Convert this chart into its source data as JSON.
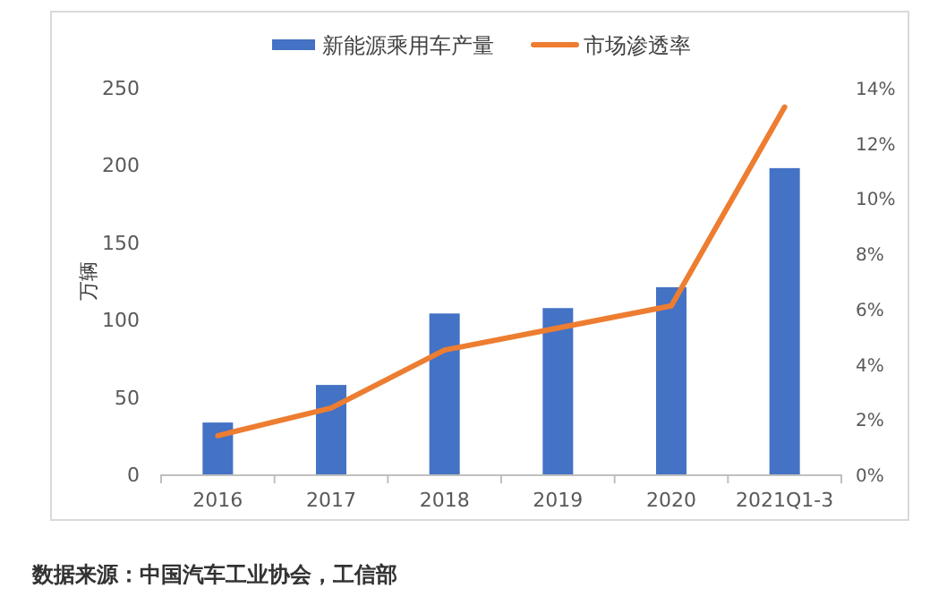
{
  "chart_data": {
    "type": "bar",
    "categories": [
      "2016",
      "2017",
      "2018",
      "2019",
      "2020",
      "2021Q1-3"
    ],
    "series": [
      {
        "name": "新能源乘用车产量",
        "color": "#4472c4",
        "values": [
          33.5,
          57.8,
          104,
          107.5,
          121,
          198
        ]
      },
      {
        "name": "市场渗透率",
        "type": "line",
        "axis": "y2",
        "color": "#ed7d31",
        "values": [
          1.4,
          2.4,
          4.5,
          5.3,
          6.1,
          13.3
        ]
      }
    ],
    "ylabel": "万辆",
    "ylim": [
      0,
      250
    ],
    "yticks": [
      0,
      50,
      100,
      150,
      200,
      250
    ],
    "y2lim": [
      0,
      14
    ],
    "y2ticks": [
      {
        "value": 0,
        "label": "0%"
      },
      {
        "value": 2,
        "label": "2%"
      },
      {
        "value": 4,
        "label": "4%"
      },
      {
        "value": 6,
        "label": "6%"
      },
      {
        "value": 8,
        "label": "8%"
      },
      {
        "value": 10,
        "label": "10%"
      },
      {
        "value": 12,
        "label": "12%"
      },
      {
        "value": 14,
        "label": "14%"
      }
    ],
    "legend": "top",
    "grid": false,
    "annotations": [
      "数据来源：中国汽车工业协会，工信部"
    ]
  }
}
